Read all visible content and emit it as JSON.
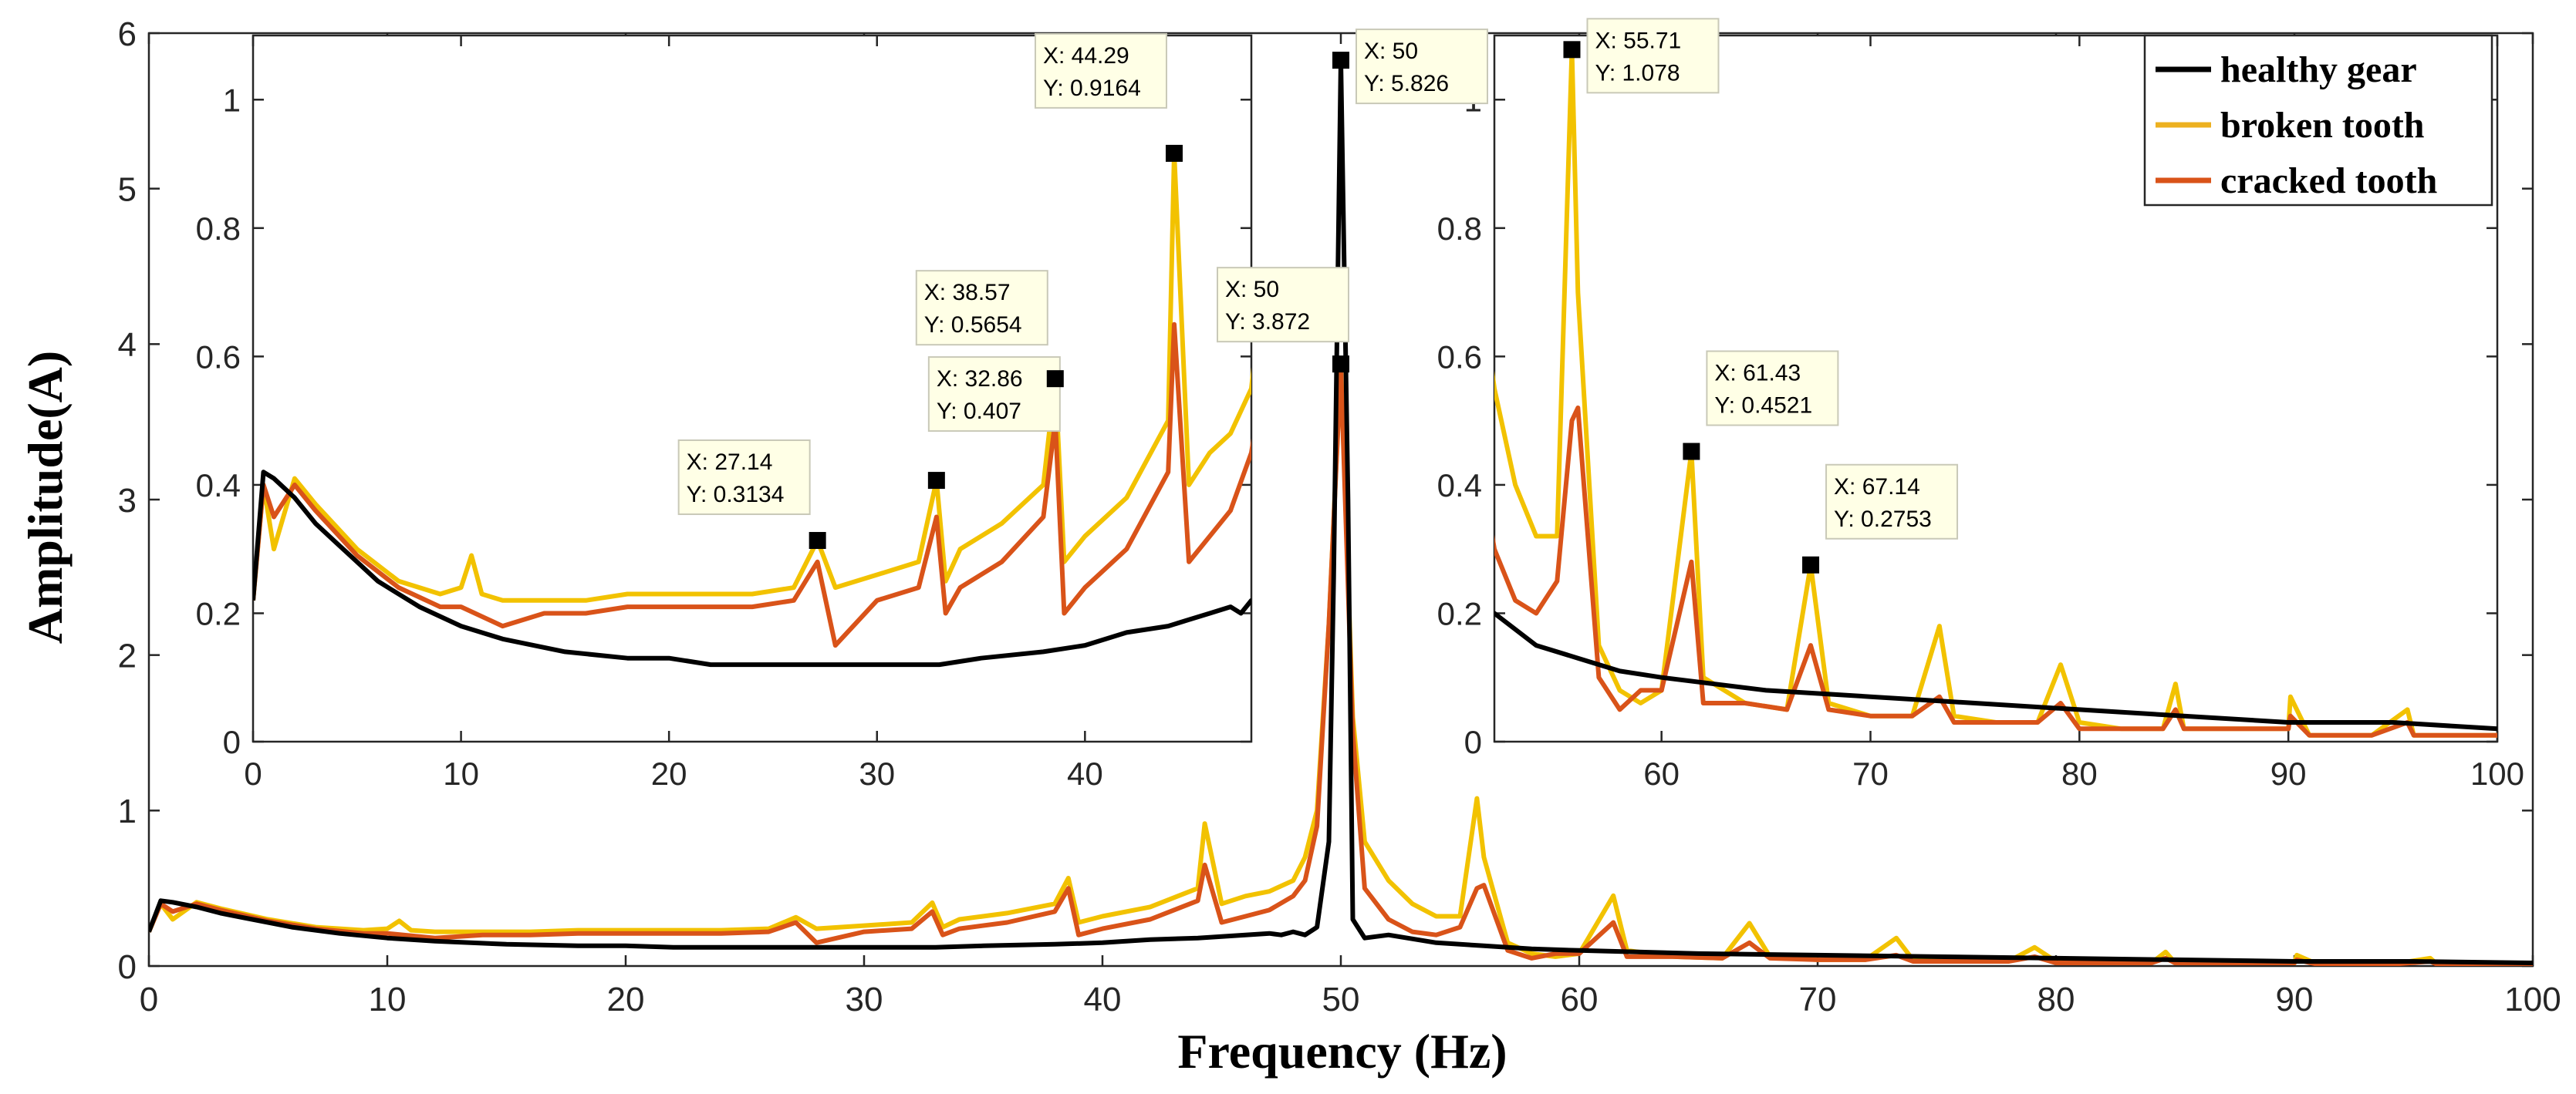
{
  "colors": {
    "healthy": "#000000",
    "broken": "#F2C200",
    "cracked": "#D95319",
    "tip_bg": "#FFFFE6",
    "tip_border": "#C9C9B8",
    "axis": "#262626"
  },
  "chart_data": {
    "type": "line",
    "xlabel": "Frequency (Hz)",
    "ylabel": "Amplitude(A)",
    "xlim": [
      0,
      100
    ],
    "ylim": [
      0,
      6
    ],
    "xticks": [
      "0",
      "10",
      "20",
      "30",
      "40",
      "50",
      "60",
      "70",
      "80",
      "90",
      "100"
    ],
    "yticks": [
      "0",
      "1",
      "2",
      "3",
      "4",
      "5",
      "6"
    ],
    "legend": {
      "position": "top-right",
      "entries": [
        {
          "label": "healthy gear",
          "color": "#000000"
        },
        {
          "label": "broken tooth",
          "color": "#EDB120"
        },
        {
          "label": "cracked tooth",
          "color": "#D95319"
        }
      ]
    },
    "series": [
      {
        "name": "healthy gear",
        "x": [
          0,
          0.5,
          1,
          2,
          3,
          4,
          5,
          6,
          7,
          8,
          10,
          12,
          15,
          18,
          20,
          22,
          25,
          27,
          28,
          30,
          33,
          35,
          38,
          40,
          42,
          44,
          45,
          46,
          47,
          47.5,
          48,
          48.5,
          49,
          49.5,
          49.7,
          50,
          50.3,
          50.5,
          51,
          52,
          54,
          56,
          58,
          60,
          65,
          70,
          75,
          80,
          85,
          90,
          95,
          100
        ],
        "y": [
          0.22,
          0.42,
          0.41,
          0.38,
          0.34,
          0.31,
          0.28,
          0.25,
          0.23,
          0.21,
          0.18,
          0.16,
          0.14,
          0.13,
          0.13,
          0.12,
          0.12,
          0.12,
          0.12,
          0.12,
          0.12,
          0.13,
          0.14,
          0.15,
          0.17,
          0.18,
          0.19,
          0.2,
          0.21,
          0.2,
          0.22,
          0.2,
          0.25,
          0.8,
          2.5,
          5.826,
          3.0,
          0.3,
          0.18,
          0.2,
          0.15,
          0.13,
          0.11,
          0.1,
          0.08,
          0.07,
          0.06,
          0.05,
          0.04,
          0.03,
          0.03,
          0.02
        ]
      },
      {
        "name": "broken tooth",
        "x": [
          0,
          0.5,
          1,
          2,
          3,
          5,
          7,
          9,
          10,
          10.5,
          11,
          12,
          14,
          16,
          18,
          20,
          22,
          24,
          26,
          27.14,
          28,
          30,
          32,
          32.86,
          33.3,
          34,
          36,
          38,
          38.57,
          39,
          40,
          42,
          44,
          44.29,
          45,
          46,
          47,
          48,
          48.5,
          49,
          49.5,
          50,
          50.5,
          51,
          52,
          53,
          54,
          55,
          55.71,
          56,
          57,
          58,
          59,
          60,
          61.43,
          62,
          64,
          66,
          67.14,
          68,
          70,
          72,
          73.3,
          74,
          76,
          78,
          79.1,
          80,
          82,
          84,
          84.6,
          85,
          88,
          90,
          90.1,
          91,
          94,
          95.7,
          96,
          100
        ],
        "y": [
          0.22,
          0.4,
          0.3,
          0.41,
          0.37,
          0.3,
          0.25,
          0.23,
          0.24,
          0.29,
          0.23,
          0.22,
          0.22,
          0.22,
          0.23,
          0.23,
          0.23,
          0.23,
          0.24,
          0.3134,
          0.24,
          0.26,
          0.28,
          0.407,
          0.25,
          0.3,
          0.34,
          0.4,
          0.5654,
          0.28,
          0.32,
          0.38,
          0.5,
          0.9164,
          0.4,
          0.45,
          0.48,
          0.55,
          0.7,
          1.0,
          2.2,
          3.872,
          1.6,
          0.8,
          0.55,
          0.4,
          0.32,
          0.32,
          1.078,
          0.7,
          0.15,
          0.08,
          0.06,
          0.08,
          0.4521,
          0.1,
          0.06,
          0.05,
          0.2753,
          0.06,
          0.04,
          0.04,
          0.18,
          0.04,
          0.03,
          0.03,
          0.12,
          0.03,
          0.02,
          0.02,
          0.09,
          0.02,
          0.02,
          0.02,
          0.07,
          0.01,
          0.01,
          0.05,
          0.01,
          0.01
        ]
      },
      {
        "name": "cracked tooth",
        "x": [
          0,
          0.5,
          1,
          2,
          3,
          5,
          7,
          9,
          10,
          12,
          14,
          16,
          18,
          20,
          22,
          24,
          26,
          27.14,
          28,
          30,
          32,
          32.86,
          33.3,
          34,
          36,
          38,
          38.57,
          39,
          40,
          42,
          44,
          44.29,
          45,
          46,
          47,
          48,
          48.5,
          49,
          49.5,
          50,
          50.5,
          51,
          52,
          53,
          54,
          55,
          55.71,
          56,
          57,
          58,
          59,
          60,
          61.43,
          62,
          64,
          66,
          67.14,
          68,
          70,
          72,
          73.3,
          74,
          76,
          78,
          79.1,
          80,
          82,
          84,
          84.6,
          85,
          88,
          90,
          90.1,
          91,
          94,
          95.7,
          96,
          100
        ],
        "y": [
          0.22,
          0.4,
          0.35,
          0.4,
          0.36,
          0.29,
          0.24,
          0.21,
          0.21,
          0.18,
          0.2,
          0.2,
          0.21,
          0.21,
          0.21,
          0.21,
          0.22,
          0.28,
          0.15,
          0.22,
          0.24,
          0.35,
          0.2,
          0.24,
          0.28,
          0.35,
          0.5,
          0.2,
          0.24,
          0.3,
          0.42,
          0.65,
          0.28,
          0.32,
          0.36,
          0.45,
          0.55,
          0.9,
          2.2,
          3.85,
          1.5,
          0.5,
          0.3,
          0.22,
          0.2,
          0.25,
          0.5,
          0.52,
          0.1,
          0.05,
          0.08,
          0.08,
          0.28,
          0.06,
          0.06,
          0.05,
          0.15,
          0.05,
          0.04,
          0.04,
          0.07,
          0.03,
          0.03,
          0.03,
          0.06,
          0.02,
          0.02,
          0.02,
          0.05,
          0.02,
          0.02,
          0.02,
          0.04,
          0.01,
          0.01,
          0.03,
          0.01,
          0.01
        ]
      }
    ],
    "insets": [
      {
        "name": "left",
        "xlim": [
          0,
          48
        ],
        "ylim": [
          0,
          1.1
        ],
        "xticks": [
          "0",
          "10",
          "20",
          "30",
          "40"
        ],
        "yticks": [
          "0",
          "0.2",
          "0.4",
          "0.6",
          "0.8",
          "1"
        ]
      },
      {
        "name": "right",
        "xlim": [
          52,
          100
        ],
        "ylim": [
          0,
          1.1
        ],
        "xticks": [
          "60",
          "70",
          "80",
          "90",
          "100"
        ],
        "yticks": [
          "0",
          "0.2",
          "0.4",
          "0.6",
          "0.8",
          "1"
        ]
      }
    ],
    "datatips": [
      {
        "target": "main",
        "x": 50,
        "y": 5.826,
        "x_text": "X: 50",
        "y_text": "Y: 5.826"
      },
      {
        "target": "main",
        "x": 50,
        "y": 3.872,
        "x_text": "X: 50",
        "y_text": "Y: 3.872"
      },
      {
        "target": "left",
        "x": 27.14,
        "y": 0.3134,
        "x_text": "X: 27.14",
        "y_text": "Y: 0.3134"
      },
      {
        "target": "left",
        "x": 32.86,
        "y": 0.407,
        "x_text": "X: 32.86",
        "y_text": "Y: 0.407"
      },
      {
        "target": "left",
        "x": 38.57,
        "y": 0.5654,
        "x_text": "X: 38.57",
        "y_text": "Y: 0.5654"
      },
      {
        "target": "left",
        "x": 44.29,
        "y": 0.9164,
        "x_text": "X: 44.29",
        "y_text": "Y: 0.9164"
      },
      {
        "target": "right",
        "x": 55.71,
        "y": 1.078,
        "x_text": "X: 55.71",
        "y_text": "Y: 1.078"
      },
      {
        "target": "right",
        "x": 61.43,
        "y": 0.4521,
        "x_text": "X: 61.43",
        "y_text": "Y: 0.4521"
      },
      {
        "target": "right",
        "x": 67.14,
        "y": 0.2753,
        "x_text": "X: 67.14",
        "y_text": "Y: 0.2753"
      }
    ]
  }
}
